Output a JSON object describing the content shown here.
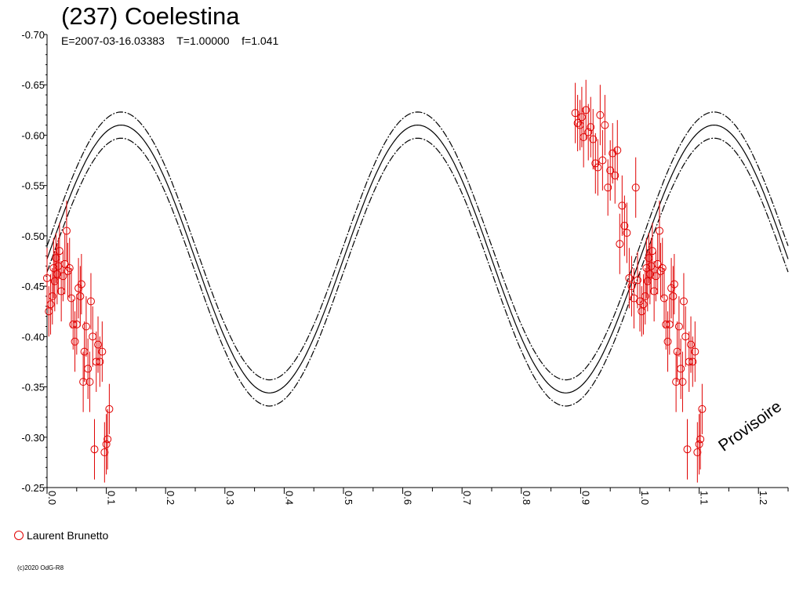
{
  "chart_data": {
    "type": "scatter",
    "title": "(237) Coelestina",
    "subtitle": "E=2007-03-16.03383    T=1.00000    f=1.041",
    "xlim": [
      0,
      1.25
    ],
    "ylim": [
      -0.7,
      -0.25
    ],
    "y_inverted": true,
    "x_ticks": [
      "0.0",
      "0.1",
      "0.2",
      "0.3",
      "0.4",
      "0.5",
      "0.6",
      "0.7",
      "0.8",
      "0.9",
      "1.0",
      "1.1",
      "1.2"
    ],
    "y_ticks": [
      "-0.70",
      "-0.65",
      "-0.60",
      "-0.55",
      "-0.50",
      "-0.45",
      "-0.40",
      "-0.35",
      "-0.30",
      "-0.25"
    ],
    "grid": false,
    "legend_placement": "bottom-left",
    "series": [
      {
        "name": "Laurent Brunetto",
        "color": "#e00000",
        "marker": "open-circle",
        "points": [
          [
            0.0,
            -0.458,
            0.03
          ],
          [
            0.003,
            -0.425,
            0.025
          ],
          [
            0.006,
            -0.432,
            0.03
          ],
          [
            0.009,
            -0.44,
            0.028
          ],
          [
            0.011,
            -0.468,
            0.03
          ],
          [
            0.013,
            -0.455,
            0.03
          ],
          [
            0.015,
            -0.478,
            0.025
          ],
          [
            0.017,
            -0.462,
            0.03
          ],
          [
            0.019,
            -0.47,
            0.028
          ],
          [
            0.021,
            -0.485,
            0.028
          ],
          [
            0.024,
            -0.445,
            0.03
          ],
          [
            0.027,
            -0.46,
            0.025
          ],
          [
            0.03,
            -0.472,
            0.03
          ],
          [
            0.033,
            -0.505,
            0.03
          ],
          [
            0.035,
            -0.465,
            0.028
          ],
          [
            0.038,
            -0.468,
            0.03
          ],
          [
            0.041,
            -0.438,
            0.03
          ],
          [
            0.044,
            -0.412,
            0.025
          ],
          [
            0.047,
            -0.395,
            0.03
          ],
          [
            0.05,
            -0.412,
            0.03
          ],
          [
            0.053,
            -0.448,
            0.03
          ],
          [
            0.056,
            -0.44,
            0.03
          ],
          [
            0.058,
            -0.452,
            0.03
          ],
          [
            0.061,
            -0.355,
            0.03
          ],
          [
            0.063,
            -0.385,
            0.03
          ],
          [
            0.066,
            -0.41,
            0.03
          ],
          [
            0.069,
            -0.368,
            0.03
          ],
          [
            0.072,
            -0.355,
            0.03
          ],
          [
            0.074,
            -0.435,
            0.028
          ],
          [
            0.077,
            -0.4,
            0.03
          ],
          [
            0.08,
            -0.288,
            0.03
          ],
          [
            0.083,
            -0.375,
            0.03
          ],
          [
            0.086,
            -0.392,
            0.028
          ],
          [
            0.089,
            -0.375,
            0.025
          ],
          [
            0.093,
            -0.385,
            0.03
          ],
          [
            0.097,
            -0.285,
            0.03
          ],
          [
            0.1,
            -0.293,
            0.03
          ],
          [
            0.102,
            -0.298,
            0.03
          ],
          [
            0.105,
            -0.328,
            0.025
          ],
          [
            0.891,
            -0.622,
            0.03
          ],
          [
            0.895,
            -0.612,
            0.028
          ],
          [
            0.899,
            -0.61,
            0.025
          ],
          [
            0.902,
            -0.618,
            0.03
          ],
          [
            0.905,
            -0.598,
            0.03
          ],
          [
            0.909,
            -0.625,
            0.03
          ],
          [
            0.913,
            -0.603,
            0.028
          ],
          [
            0.917,
            -0.608,
            0.03
          ],
          [
            0.921,
            -0.596,
            0.03
          ],
          [
            0.925,
            -0.572,
            0.03
          ],
          [
            0.929,
            -0.568,
            0.028
          ],
          [
            0.933,
            -0.62,
            0.03
          ],
          [
            0.937,
            -0.575,
            0.03
          ],
          [
            0.941,
            -0.61,
            0.03
          ],
          [
            0.946,
            -0.548,
            0.028
          ],
          [
            0.95,
            -0.565,
            0.03
          ],
          [
            0.954,
            -0.582,
            0.03
          ],
          [
            0.958,
            -0.56,
            0.028
          ],
          [
            0.962,
            -0.585,
            0.03
          ],
          [
            0.966,
            -0.492,
            0.03
          ],
          [
            0.97,
            -0.53,
            0.03
          ],
          [
            0.974,
            -0.51,
            0.03
          ],
          [
            0.978,
            -0.503,
            0.03
          ],
          [
            0.982,
            -0.458,
            0.03
          ],
          [
            0.986,
            -0.45,
            0.03
          ],
          [
            0.99,
            -0.438,
            0.03
          ],
          [
            0.993,
            -0.548,
            0.03
          ],
          [
            0.996,
            -0.456,
            0.028
          ],
          [
            1.0,
            -0.435,
            0.03
          ],
          [
            1.003,
            -0.425,
            0.025
          ],
          [
            1.006,
            -0.432,
            0.03
          ],
          [
            1.009,
            -0.44,
            0.028
          ],
          [
            1.011,
            -0.468,
            0.03
          ],
          [
            1.013,
            -0.455,
            0.03
          ],
          [
            1.015,
            -0.478,
            0.025
          ],
          [
            1.017,
            -0.462,
            0.03
          ],
          [
            1.019,
            -0.47,
            0.028
          ],
          [
            1.021,
            -0.485,
            0.028
          ],
          [
            1.024,
            -0.445,
            0.03
          ],
          [
            1.027,
            -0.46,
            0.025
          ],
          [
            1.03,
            -0.472,
            0.03
          ],
          [
            1.033,
            -0.505,
            0.03
          ],
          [
            1.035,
            -0.465,
            0.028
          ],
          [
            1.038,
            -0.468,
            0.03
          ],
          [
            1.041,
            -0.438,
            0.03
          ],
          [
            1.044,
            -0.412,
            0.025
          ],
          [
            1.047,
            -0.395,
            0.03
          ],
          [
            1.05,
            -0.412,
            0.03
          ],
          [
            1.053,
            -0.448,
            0.03
          ],
          [
            1.056,
            -0.44,
            0.03
          ],
          [
            1.058,
            -0.452,
            0.03
          ],
          [
            1.061,
            -0.355,
            0.03
          ],
          [
            1.063,
            -0.385,
            0.03
          ],
          [
            1.066,
            -0.41,
            0.03
          ],
          [
            1.069,
            -0.368,
            0.03
          ],
          [
            1.072,
            -0.355,
            0.03
          ],
          [
            1.074,
            -0.435,
            0.028
          ],
          [
            1.077,
            -0.4,
            0.03
          ],
          [
            1.08,
            -0.288,
            0.03
          ],
          [
            1.083,
            -0.375,
            0.03
          ],
          [
            1.086,
            -0.392,
            0.028
          ],
          [
            1.089,
            -0.375,
            0.025
          ],
          [
            1.093,
            -0.385,
            0.03
          ],
          [
            1.097,
            -0.285,
            0.03
          ],
          [
            1.1,
            -0.293,
            0.03
          ],
          [
            1.102,
            -0.298,
            0.03
          ],
          [
            1.105,
            -0.328,
            0.025
          ]
        ]
      }
    ],
    "model": {
      "mean": -0.477,
      "amplitude": 0.133,
      "phase": 0.375,
      "envelope": 0.013,
      "line_styles": [
        "solid",
        "dashed"
      ]
    }
  },
  "legend": {
    "label": "Laurent Brunetto"
  },
  "stamp": "Provisoire",
  "copyright": "(c)2020 OdG-R8"
}
